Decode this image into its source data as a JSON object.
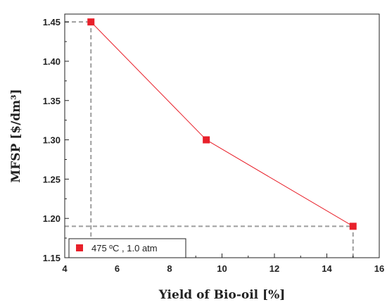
{
  "chart_data": {
    "type": "line",
    "title": "",
    "xlabel": "Yield of Bio-oil [%]",
    "ylabel": "MFSP [$/dm³]",
    "xlim": [
      4,
      16
    ],
    "ylim": [
      1.15,
      1.46
    ],
    "xticks": [
      "4",
      "6",
      "8",
      "10",
      "12",
      "14",
      "16"
    ],
    "yticks": [
      "1.15",
      "1.20",
      "1.25",
      "1.30",
      "1.35",
      "1.40",
      "1.45"
    ],
    "grid": false,
    "legend_position": "bottom-left",
    "series": [
      {
        "name": "475 ºC , 1.0 atm",
        "color": "#e8202a",
        "x": [
          5,
          9.4,
          15
        ],
        "y": [
          1.45,
          1.3,
          1.19
        ]
      }
    ],
    "reference_lines": [
      {
        "type": "horizontal",
        "value": 1.45,
        "from_x": 4,
        "to_x": 5
      },
      {
        "type": "vertical",
        "value": 5,
        "from_y": 1.15,
        "to_y": 1.45
      },
      {
        "type": "horizontal",
        "value": 1.19,
        "from_x": 4,
        "to_x": 15
      },
      {
        "type": "vertical",
        "value": 15,
        "from_y": 1.15,
        "to_y": 1.19
      }
    ],
    "reference_color": "#9e9e9e"
  }
}
